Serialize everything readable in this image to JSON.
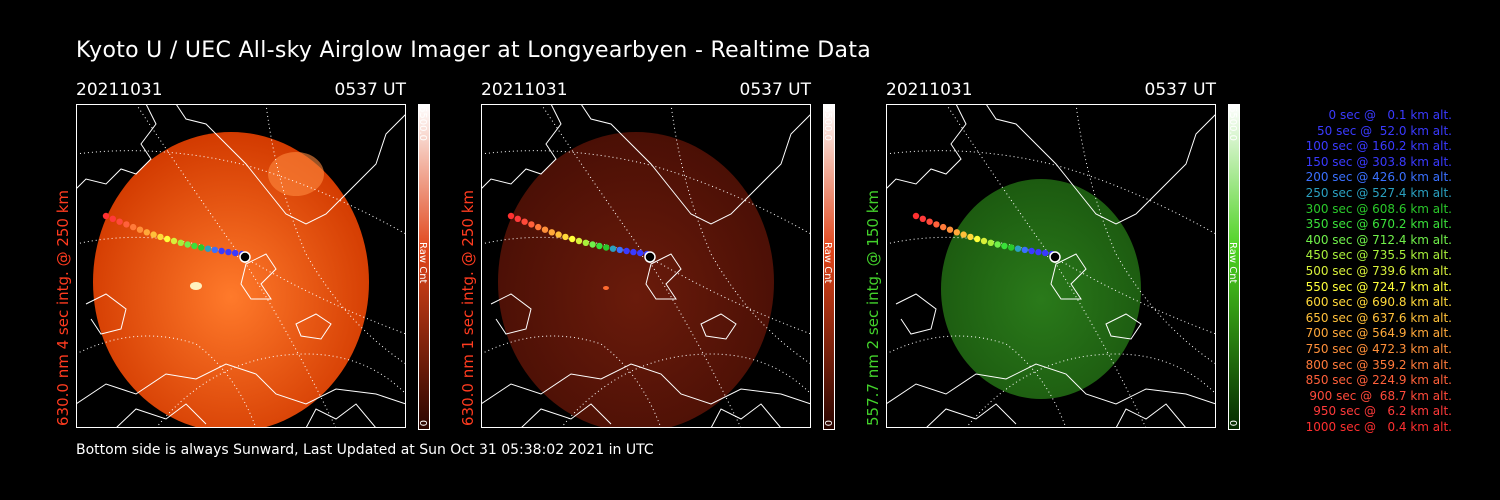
{
  "title": "Kyoto U / UEC All-sky Airglow Imager at Longyearbyen - Realtime Data",
  "panels": [
    {
      "date": "20211031",
      "time": "0537 UT",
      "ylabel": "630.0 nm 4 sec intg. @ 250 km",
      "label_color": "#ff3b1f",
      "cbar_max": "6500.0",
      "cbar_min": "0",
      "cbar_unit": "Raw Cnt",
      "glow_color": "#d23a00",
      "glow_bright": "#ff7a2b",
      "cbar_top": "#ffffff",
      "cbar_mid": "#e0451a",
      "cbar_bottom": "#2a0500"
    },
    {
      "date": "20211031",
      "time": "0537 UT",
      "ylabel": "630.0 nm 1 sec intg. @ 250 km",
      "label_color": "#ff3b1f",
      "cbar_max": "6500.0",
      "cbar_min": "0",
      "cbar_unit": "Raw Cnt",
      "glow_color": "#4a0f05",
      "glow_bright": "#6a1b0b",
      "cbar_top": "#ffffff",
      "cbar_mid": "#e0451a",
      "cbar_bottom": "#2a0500"
    },
    {
      "date": "20211031",
      "time": "0537 UT",
      "ylabel": "557.7 nm 2 sec intg. @ 150 km",
      "label_color": "#43d22b",
      "cbar_max": "6500.0",
      "cbar_min": "0",
      "cbar_unit": "Raw Cnt",
      "glow_color": "#1c5a10",
      "glow_bright": "#2a7a1a",
      "cbar_top": "#ffffff",
      "cbar_mid": "#4bd11f",
      "cbar_bottom": "#052a00"
    }
  ],
  "footer": "Bottom side is always Sunward, Last Updated at Sun Oct 31 05:38:02 2021 in UTC",
  "legend": [
    {
      "text": "   0 sec @   0.1 km alt.",
      "color": "#3a3aff"
    },
    {
      "text": "  50 sec @  52.0 km alt.",
      "color": "#3a3aff"
    },
    {
      "text": " 100 sec @ 160.2 km alt.",
      "color": "#3a3aff"
    },
    {
      "text": " 150 sec @ 303.8 km alt.",
      "color": "#3a3aff"
    },
    {
      "text": " 200 sec @ 426.0 km alt.",
      "color": "#3a70ff"
    },
    {
      "text": " 250 sec @ 527.4 km alt.",
      "color": "#2aa0c0"
    },
    {
      "text": " 300 sec @ 608.6 km alt.",
      "color": "#2ac82a"
    },
    {
      "text": " 350 sec @ 670.2 km alt.",
      "color": "#3ae03a"
    },
    {
      "text": " 400 sec @ 712.4 km alt.",
      "color": "#70f04a"
    },
    {
      "text": " 450 sec @ 735.5 km alt.",
      "color": "#a8f03a"
    },
    {
      "text": " 500 sec @ 739.6 km alt.",
      "color": "#d8f03a"
    },
    {
      "text": " 550 sec @ 724.7 km alt.",
      "color": "#ffff3a"
    },
    {
      "text": " 600 sec @ 690.8 km alt.",
      "color": "#ffd83a"
    },
    {
      "text": " 650 sec @ 637.6 km alt.",
      "color": "#ffc03a"
    },
    {
      "text": " 700 sec @ 564.9 km alt.",
      "color": "#ffa83a"
    },
    {
      "text": " 750 sec @ 472.3 km alt.",
      "color": "#ff903a"
    },
    {
      "text": " 800 sec @ 359.2 km alt.",
      "color": "#ff7a3a"
    },
    {
      "text": " 850 sec @ 224.9 km alt.",
      "color": "#ff603a"
    },
    {
      "text": " 900 sec @  68.7 km alt.",
      "color": "#ff4a3a"
    },
    {
      "text": " 950 sec @   6.2 km alt.",
      "color": "#ff3a3a"
    },
    {
      "text": "1000 sec @   0.4 km alt.",
      "color": "#ff3030"
    }
  ]
}
